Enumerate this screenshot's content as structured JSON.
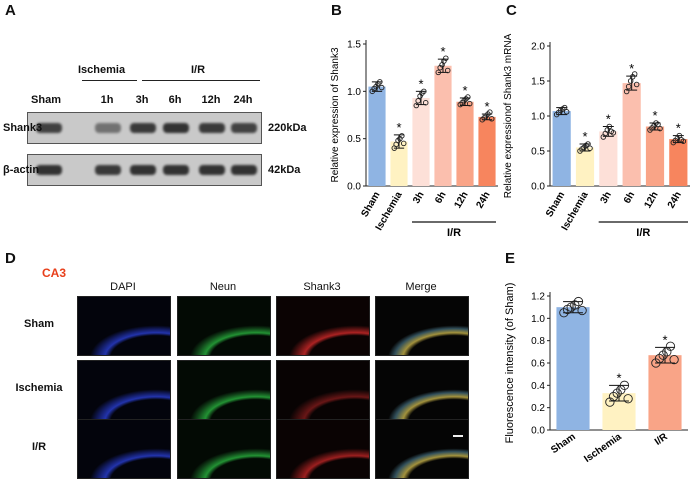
{
  "panels": {
    "a": "A",
    "b": "B",
    "c": "C",
    "d": "D",
    "e": "E"
  },
  "western": {
    "group_ischemia": "Ischemia",
    "group_ir": "I/R",
    "lanes": [
      "Sham",
      "1h",
      "3h",
      "6h",
      "12h",
      "24h"
    ],
    "rows": [
      {
        "name": "Shank3",
        "size": "220kDa",
        "intensity": [
          0.85,
          0.55,
          0.9,
          0.95,
          0.9,
          0.85
        ]
      },
      {
        "name": "β-actin",
        "size": "42kDa",
        "intensity": [
          0.95,
          0.9,
          0.95,
          0.95,
          0.95,
          0.95
        ]
      }
    ]
  },
  "micro": {
    "region": "CA3",
    "columns": [
      "DAPI",
      "Neun",
      "Shank3",
      "Merge"
    ],
    "rows": [
      "Sham",
      "Ischemia",
      "I/R"
    ]
  },
  "chart_data": [
    {
      "type": "bar",
      "ylabel": "Relative expression of Shank3",
      "categories": [
        "Sham",
        "Ischemia",
        "3h",
        "6h",
        "12h",
        "24h"
      ],
      "group_label": "I/R",
      "values": [
        1.05,
        0.47,
        0.93,
        1.27,
        0.89,
        0.73
      ],
      "errors": [
        0.05,
        0.07,
        0.07,
        0.07,
        0.04,
        0.03
      ],
      "points": [
        [
          1.0,
          1.03,
          1.05,
          1.08,
          1.1,
          1.04
        ],
        [
          0.4,
          0.44,
          0.48,
          0.5,
          0.53,
          0.45
        ],
        [
          0.85,
          0.9,
          0.95,
          0.98,
          1.0,
          0.88
        ],
        [
          1.2,
          1.25,
          1.28,
          1.32,
          1.35,
          1.22
        ],
        [
          0.86,
          0.88,
          0.9,
          0.92,
          0.94,
          0.87
        ],
        [
          0.7,
          0.72,
          0.74,
          0.76,
          0.78,
          0.71
        ]
      ],
      "significance": [
        "",
        "*",
        "*",
        "*",
        "*",
        "*"
      ],
      "ylim": [
        0,
        1.5
      ],
      "yticks": [
        "0.0",
        "0.5",
        "1.0",
        "1.5"
      ],
      "colors": [
        "#8fb4e3",
        "#fff2c2",
        "#fde0d8",
        "#fbbfae",
        "#f9a487",
        "#f7855e"
      ]
    },
    {
      "type": "bar",
      "ylabel": "Relative expressionof Shank3 mRNA",
      "categories": [
        "Sham",
        "Ischemia",
        "3h",
        "6h",
        "12h",
        "24h"
      ],
      "group_label": "I/R",
      "values": [
        1.07,
        0.55,
        0.78,
        1.47,
        0.85,
        0.67
      ],
      "errors": [
        0.05,
        0.05,
        0.07,
        0.1,
        0.05,
        0.05
      ],
      "points": [
        [
          1.02,
          1.05,
          1.08,
          1.1,
          1.12,
          1.06
        ],
        [
          0.5,
          0.53,
          0.55,
          0.58,
          0.6,
          0.54
        ],
        [
          0.7,
          0.75,
          0.8,
          0.85,
          0.78,
          0.76
        ],
        [
          1.35,
          1.42,
          1.5,
          1.56,
          1.6,
          1.45
        ],
        [
          0.8,
          0.83,
          0.86,
          0.9,
          0.88,
          0.82
        ],
        [
          0.62,
          0.65,
          0.68,
          0.72,
          0.66,
          0.64
        ]
      ],
      "significance": [
        "",
        "*",
        "*",
        "*",
        "*",
        "*"
      ],
      "ylim": [
        0,
        2.0
      ],
      "yticks": [
        "0.0",
        "0.5",
        "1.0",
        "1.5",
        "2.0"
      ],
      "colors": [
        "#8fb4e3",
        "#fff2c2",
        "#fde0d8",
        "#fbbfae",
        "#f9a487",
        "#f7855e"
      ]
    },
    {
      "type": "bar",
      "ylabel": "Fluorescence intensity (of Sham)",
      "categories": [
        "Sham",
        "Ischemia",
        "I/R"
      ],
      "values": [
        1.1,
        0.33,
        0.67
      ],
      "errors": [
        0.05,
        0.07,
        0.07
      ],
      "points": [
        [
          1.05,
          1.08,
          1.1,
          1.12,
          1.15,
          1.07
        ],
        [
          0.25,
          0.3,
          0.33,
          0.36,
          0.4,
          0.28
        ],
        [
          0.6,
          0.64,
          0.67,
          0.7,
          0.75,
          0.63
        ]
      ],
      "significance": [
        "",
        "*",
        "*"
      ],
      "ylim": [
        0,
        1.2
      ],
      "yticks": [
        "0.0",
        "0.2",
        "0.4",
        "0.6",
        "0.8",
        "1.0",
        "1.2"
      ],
      "colors": [
        "#8fb4e3",
        "#fff2c2",
        "#f9a487"
      ]
    }
  ]
}
